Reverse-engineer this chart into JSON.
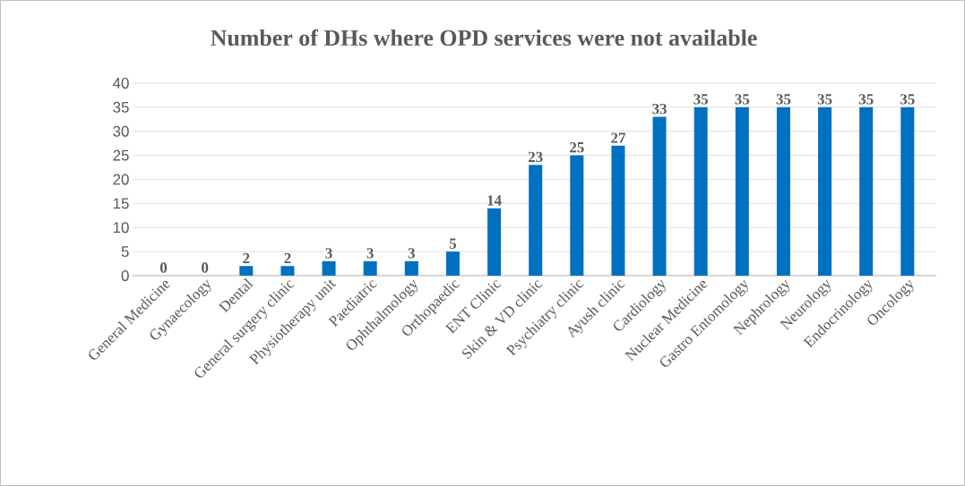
{
  "chart_data": {
    "type": "bar",
    "title": "Number of DHs where OPD services were not available",
    "categories": [
      "General Medicine",
      "Gynaecology",
      "Dental",
      "General surgery clinic",
      "Physiotherapy unit",
      "Paediatric",
      "Ophthalmology",
      "Orthopaedic",
      "ENT Clinic",
      "Skin & VD clinic",
      "Psychiatry clinic",
      "Ayush clinic",
      "Cardiology",
      "Nuclear Medicine",
      "Gastro Entomology",
      "Nephrology",
      "Neurology",
      "Endocrinology",
      "Oncology"
    ],
    "values": [
      0,
      0,
      2,
      2,
      3,
      3,
      3,
      5,
      14,
      23,
      25,
      27,
      33,
      35,
      35,
      35,
      35,
      35,
      35
    ],
    "color": "#0070c0",
    "ylim": [
      0,
      40
    ],
    "yticks": [
      0,
      5,
      10,
      15,
      20,
      25,
      30,
      35,
      40
    ],
    "grid": "y",
    "data_labels": true
  }
}
